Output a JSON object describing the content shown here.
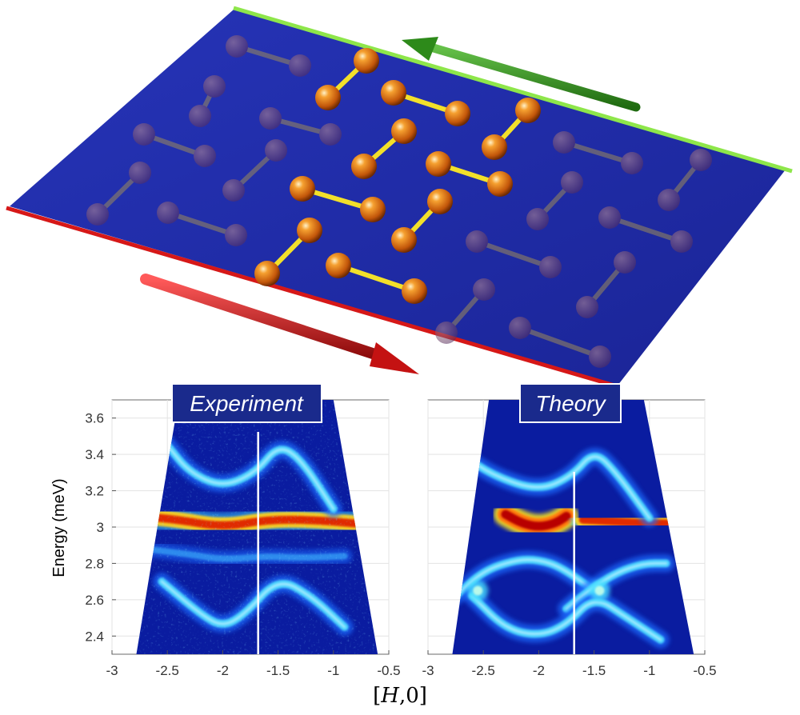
{
  "colors": {
    "plane": "#1f2ba8",
    "top_edge": "#8ee64a",
    "bottom_edge": "#d61818",
    "top_arrow": "#2d8a1a",
    "bottom_arrow": "#c41212",
    "atom": "#e07a10",
    "bond_bright": "#f2e02a",
    "bond_dim": "#9c8a5a",
    "spectral_background": "#0a1ca0",
    "title_box": "#1a2a8c"
  },
  "chart_data": [
    {
      "type": "heatmap",
      "title": "Experiment",
      "xlabel": "",
      "ylabel": "Energy (meV)",
      "xlim": [
        -3,
        -0.5
      ],
      "ylim": [
        2.3,
        3.7
      ],
      "x_ticks": [
        "-3",
        "-2.5",
        "-2",
        "-1.5",
        "-1",
        "-0.5"
      ],
      "y_ticks": [
        "2.4",
        "2.6",
        "2.8",
        "3",
        "3.2",
        "3.4",
        "3.6"
      ],
      "grid": true,
      "white_line_x": -1.68,
      "data_region": {
        "bottom": {
          "left": -2.78,
          "right": -0.6
        },
        "top": {
          "left": -2.4,
          "right": -1.0
        }
      },
      "bands": [
        {
          "name": "flat",
          "points": [
            [
              -2.75,
              3.06
            ],
            [
              -2.4,
              3.04
            ],
            [
              -2.0,
              3.0
            ],
            [
              -1.6,
              3.04
            ],
            [
              -1.2,
              3.04
            ],
            [
              -0.8,
              3.02
            ]
          ],
          "intensity": "high"
        },
        {
          "name": "upper",
          "points": [
            [
              -2.5,
              3.45
            ],
            [
              -2.3,
              3.3
            ],
            [
              -2.0,
              3.22
            ],
            [
              -1.7,
              3.3
            ],
            [
              -1.5,
              3.45
            ],
            [
              -1.3,
              3.38
            ],
            [
              -1.0,
              3.1
            ]
          ],
          "intensity": "medium"
        },
        {
          "name": "middle",
          "points": [
            [
              -2.7,
              2.88
            ],
            [
              -2.3,
              2.85
            ],
            [
              -2.0,
              2.82
            ],
            [
              -1.6,
              2.84
            ],
            [
              -1.3,
              2.83
            ],
            [
              -0.9,
              2.84
            ]
          ],
          "intensity": "low"
        },
        {
          "name": "lower",
          "points": [
            [
              -2.55,
              2.7
            ],
            [
              -2.2,
              2.52
            ],
            [
              -2.0,
              2.45
            ],
            [
              -1.8,
              2.52
            ],
            [
              -1.5,
              2.72
            ],
            [
              -1.2,
              2.62
            ],
            [
              -0.9,
              2.45
            ]
          ],
          "intensity": "medium"
        }
      ]
    },
    {
      "type": "heatmap",
      "title": "Theory",
      "xlabel": "[H,0]",
      "ylabel": "",
      "xlim": [
        -3,
        -0.5
      ],
      "ylim": [
        2.3,
        3.7
      ],
      "x_ticks": [
        "-3",
        "-2.5",
        "-2",
        "-1.5",
        "-1",
        "-0.5"
      ],
      "grid": true,
      "white_line_x": -1.68,
      "data_region": {
        "bottom": {
          "left": -2.78,
          "right": -0.6
        },
        "top": {
          "left": -2.45,
          "right": -1.05
        }
      },
      "bands": [
        {
          "name": "flat-left",
          "points": [
            [
              -2.75,
              3.04
            ],
            [
              -2.55,
              3.04
            ]
          ],
          "intensity": "high"
        },
        {
          "name": "flat-middle",
          "points": [
            [
              -2.3,
              3.07
            ],
            [
              -2.15,
              3.02
            ],
            [
              -2.0,
              3.0
            ],
            [
              -1.85,
              3.02
            ],
            [
              -1.75,
              3.06
            ]
          ],
          "intensity": "peak"
        },
        {
          "name": "flat-right",
          "points": [
            [
              -1.6,
              3.04
            ],
            [
              -1.3,
              3.03
            ],
            [
              -1.0,
              3.02
            ],
            [
              -0.85,
              3.02
            ]
          ],
          "intensity": "high"
        },
        {
          "name": "upper",
          "points": [
            [
              -2.7,
              3.4
            ],
            [
              -2.4,
              3.28
            ],
            [
              -2.0,
              3.2
            ],
            [
              -1.7,
              3.28
            ],
            [
              -1.5,
              3.42
            ],
            [
              -1.3,
              3.3
            ],
            [
              -1.0,
              3.05
            ]
          ],
          "intensity": "medium"
        },
        {
          "name": "arch-left",
          "points": [
            [
              -2.75,
              2.62
            ],
            [
              -2.5,
              2.76
            ],
            [
              -2.2,
              2.82
            ],
            [
              -2.0,
              2.82
            ],
            [
              -1.8,
              2.78
            ],
            [
              -1.5,
              2.65
            ]
          ],
          "intensity": "medium"
        },
        {
          "name": "arch-right",
          "points": [
            [
              -1.75,
              2.55
            ],
            [
              -1.55,
              2.65
            ],
            [
              -1.3,
              2.75
            ],
            [
              -1.05,
              2.8
            ],
            [
              -0.85,
              2.8
            ]
          ],
          "intensity": "medium"
        },
        {
          "name": "valley",
          "points": [
            [
              -2.6,
              2.62
            ],
            [
              -2.3,
              2.44
            ],
            [
              -2.0,
              2.4
            ],
            [
              -1.75,
              2.46
            ],
            [
              -1.5,
              2.62
            ],
            [
              -1.2,
              2.5
            ],
            [
              -0.9,
              2.38
            ]
          ],
          "intensity": "medium"
        },
        {
          "name": "hotspot-left",
          "points": [
            [
              -2.55,
              2.65
            ]
          ],
          "intensity": "spot"
        },
        {
          "name": "hotspot-right",
          "points": [
            [
              -1.45,
              2.65
            ]
          ],
          "intensity": "spot"
        }
      ]
    }
  ]
}
